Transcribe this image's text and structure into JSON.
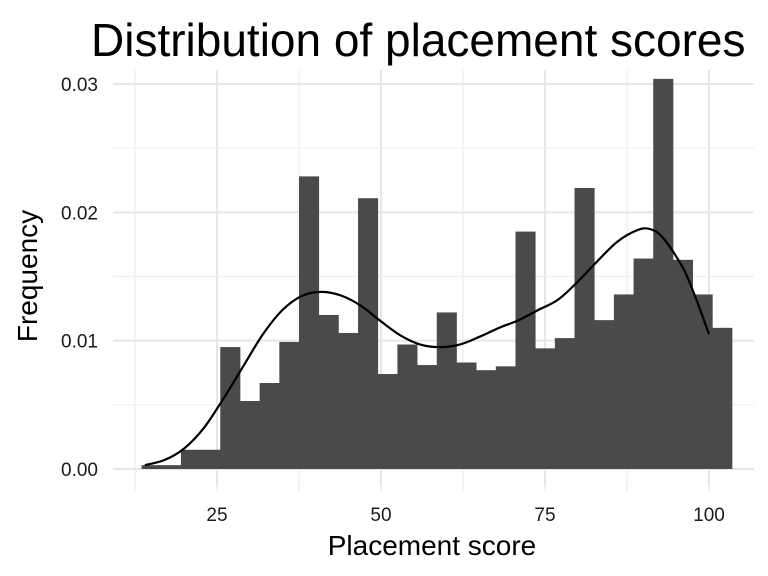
{
  "chart_data": {
    "type": "bar",
    "title": "Distribution of placement scores",
    "xlabel": "Placement score",
    "ylabel": "Frequency",
    "xlim": [
      10,
      105
    ],
    "ylim": [
      0,
      0.031
    ],
    "x_ticks": [
      25,
      50,
      75,
      100
    ],
    "y_ticks": [
      0.0,
      0.01,
      0.02,
      0.03
    ],
    "y_tick_labels": [
      "0.00",
      "0.01",
      "0.02",
      "0.03"
    ],
    "grid": true,
    "bar_color": "#4a4a4a",
    "bin_width": 3,
    "bin_start": 13.5,
    "values": [
      0.0003,
      0.0003,
      0.0015,
      0.0015,
      0.0095,
      0.0053,
      0.0067,
      0.0099,
      0.0228,
      0.012,
      0.0106,
      0.0211,
      0.0074,
      0.0097,
      0.0081,
      0.0122,
      0.0083,
      0.0077,
      0.008,
      0.0185,
      0.0094,
      0.0102,
      0.0219,
      0.0116,
      0.0136,
      0.0164,
      0.0304,
      0.0163,
      0.0136,
      0.011
    ],
    "density": {
      "name": "density",
      "color": "#000000",
      "x": [
        14,
        17,
        20,
        23,
        26,
        29,
        32,
        35,
        38,
        41,
        44,
        47,
        50,
        53,
        56,
        59,
        62,
        65,
        68,
        71,
        74,
        77,
        80,
        83,
        86,
        89,
        91,
        93,
        96,
        98,
        100
      ],
      "y": [
        0.0003,
        0.0007,
        0.0016,
        0.0032,
        0.0055,
        0.008,
        0.0105,
        0.0124,
        0.0135,
        0.0138,
        0.0135,
        0.0127,
        0.0115,
        0.0104,
        0.0097,
        0.0095,
        0.0097,
        0.0103,
        0.011,
        0.0116,
        0.0124,
        0.0132,
        0.0146,
        0.0162,
        0.0177,
        0.0186,
        0.0187,
        0.018,
        0.0157,
        0.0133,
        0.0105
      ]
    }
  }
}
